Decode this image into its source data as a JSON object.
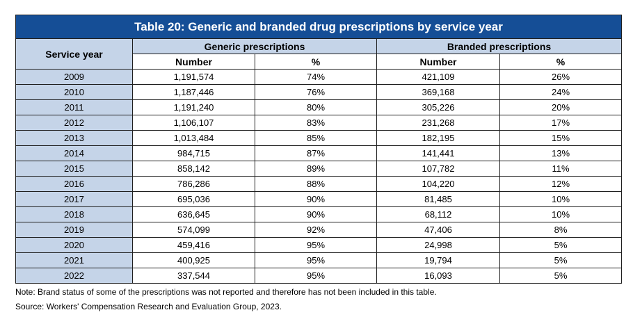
{
  "title": "Table 20: Generic and branded drug prescriptions by service year",
  "headers": {
    "service_year": "Service year",
    "generic": "Generic prescriptions",
    "branded": "Branded prescriptions",
    "number": "Number",
    "percent": "%"
  },
  "rows": [
    [
      "2009",
      "1,191,574",
      "74%",
      "421,109",
      "26%"
    ],
    [
      "2010",
      "1,187,446",
      "76%",
      "369,168",
      "24%"
    ],
    [
      "2011",
      "1,191,240",
      "80%",
      "305,226",
      "20%"
    ],
    [
      "2012",
      "1,106,107",
      "83%",
      "231,268",
      "17%"
    ],
    [
      "2013",
      "1,013,484",
      "85%",
      "182,195",
      "15%"
    ],
    [
      "2014",
      "984,715",
      "87%",
      "141,441",
      "13%"
    ],
    [
      "2015",
      "858,142",
      "89%",
      "107,782",
      "11%"
    ],
    [
      "2016",
      "786,286",
      "88%",
      "104,220",
      "12%"
    ],
    [
      "2017",
      "695,036",
      "90%",
      "81,485",
      "10%"
    ],
    [
      "2018",
      "636,645",
      "90%",
      "68,112",
      "10%"
    ],
    [
      "2019",
      "574,099",
      "92%",
      "47,406",
      "8%"
    ],
    [
      "2020",
      "459,416",
      "95%",
      "24,998",
      "5%"
    ],
    [
      "2021",
      "400,925",
      "95%",
      "19,794",
      "5%"
    ],
    [
      "2022",
      "337,544",
      "95%",
      "16,093",
      "5%"
    ]
  ],
  "note": "Note: Brand status of some of the prescriptions was not reported and therefore has not been included in this table.",
  "source": "Source: Workers' Compensation Research and Evaluation Group, 2023.",
  "colors": {
    "title_bg": "#154e96",
    "header_bg": "#c5d4e8"
  }
}
